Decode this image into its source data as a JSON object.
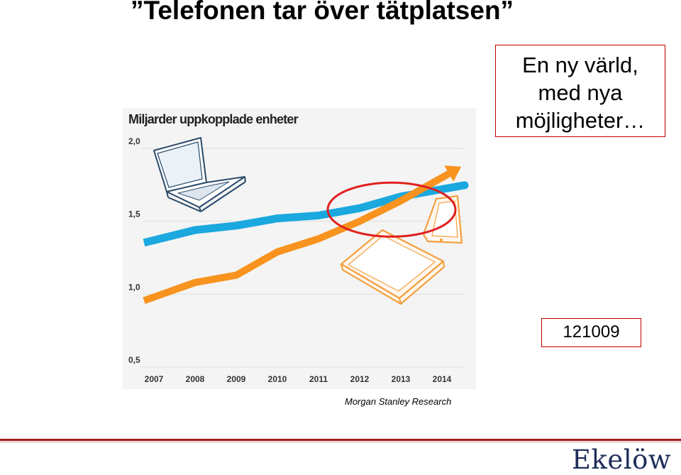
{
  "slide": {
    "title": "”Telefonen tar över tätplatsen”",
    "callout_lines": [
      "En ny värld,",
      "med nya",
      "möjligheter…"
    ],
    "date": "121009",
    "source": "Morgan Stanley Research",
    "logo": "Ekelöw"
  },
  "colors": {
    "pc_series": "#1aa8de",
    "mobile_series": "#f7931e",
    "highlight": "#e02020",
    "gridline": "#dddddd",
    "footer_rule": "#a21d1d"
  },
  "icons": [
    "laptop-icon",
    "smartphone-icon",
    "tablet-icon"
  ],
  "chart_data": {
    "type": "line",
    "title": "Miljarder uppkopplade enheter",
    "x": [
      2007,
      2008,
      2009,
      2010,
      2011,
      2012,
      2013,
      2014
    ],
    "x_tick_labels": [
      "2007",
      "2008",
      "2009",
      "2010",
      "2011",
      "2012",
      "2013",
      "2014"
    ],
    "y_ticks": [
      0.5,
      1.0,
      1.5,
      2.0
    ],
    "y_tick_labels": [
      "0,5",
      "1,0",
      "1,5",
      "2,0"
    ],
    "ylim": [
      0.5,
      2.0
    ],
    "series": [
      {
        "key": "pc",
        "values": [
          1.37,
          1.44,
          1.47,
          1.52,
          1.54,
          1.59,
          1.67,
          1.72
        ]
      },
      {
        "key": "mobile",
        "values": [
          0.98,
          1.08,
          1.13,
          1.29,
          1.38,
          1.5,
          1.64,
          1.8
        ]
      }
    ],
    "grid": true,
    "highlight": {
      "shape": "ellipse",
      "around_years": [
        2011,
        2014
      ]
    }
  }
}
